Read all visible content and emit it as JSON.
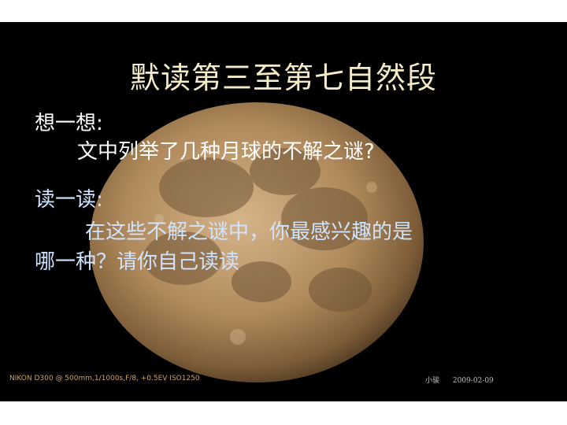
{
  "slide": {
    "title": "默读第三至第七自然段",
    "q1": {
      "label": "想一想:",
      "body": "文中列举了几种月球的不解之谜?"
    },
    "q2": {
      "label": "读一读:",
      "line1": "在这些不解之谜中，你最感兴趣的是",
      "line2": "哪一种？请你自己读读"
    },
    "photo": {
      "caption": "NIKON D300 @ 500mm,1/1000s,F/8, +0.5EV ISO1250",
      "author": "小骏",
      "date": "2009-02-09"
    }
  },
  "colors": {
    "background": "#000000",
    "title": "#f4ecc8",
    "body_text": "#ffffff",
    "accent_text": "#cfe4ff",
    "moon": "#b08a5c"
  }
}
